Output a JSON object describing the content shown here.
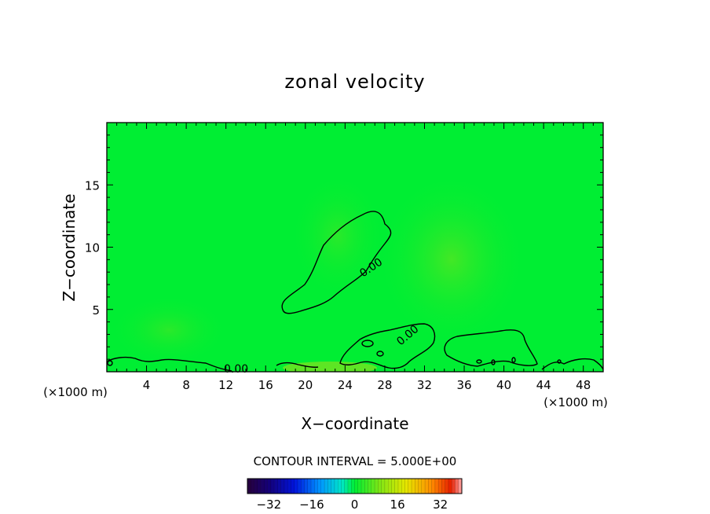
{
  "chart_data": {
    "type": "contour",
    "title": "zonal velocity",
    "xlabel": "X−coordinate",
    "ylabel": "Z−coordinate",
    "xunit": "(×1000 m)",
    "yunit": "(×1000 m)",
    "xlim": [
      0,
      50
    ],
    "ylim": [
      0,
      20
    ],
    "xticks": [
      4,
      8,
      12,
      16,
      20,
      24,
      28,
      32,
      36,
      40,
      44,
      48
    ],
    "yticks": [
      5,
      10,
      15
    ],
    "contour_labels": [
      "0.00",
      "0.00",
      "0.00"
    ],
    "contour_interval_text": "CONTOUR INTERVAL = 5.000E+00",
    "colorbar": {
      "min": -40,
      "max": 40,
      "tick_values": [
        -32,
        -16,
        0,
        16,
        32
      ],
      "tick_labels": [
        "−32",
        "−16",
        "0",
        "16",
        "32"
      ]
    },
    "background_color": "#00ee33"
  }
}
